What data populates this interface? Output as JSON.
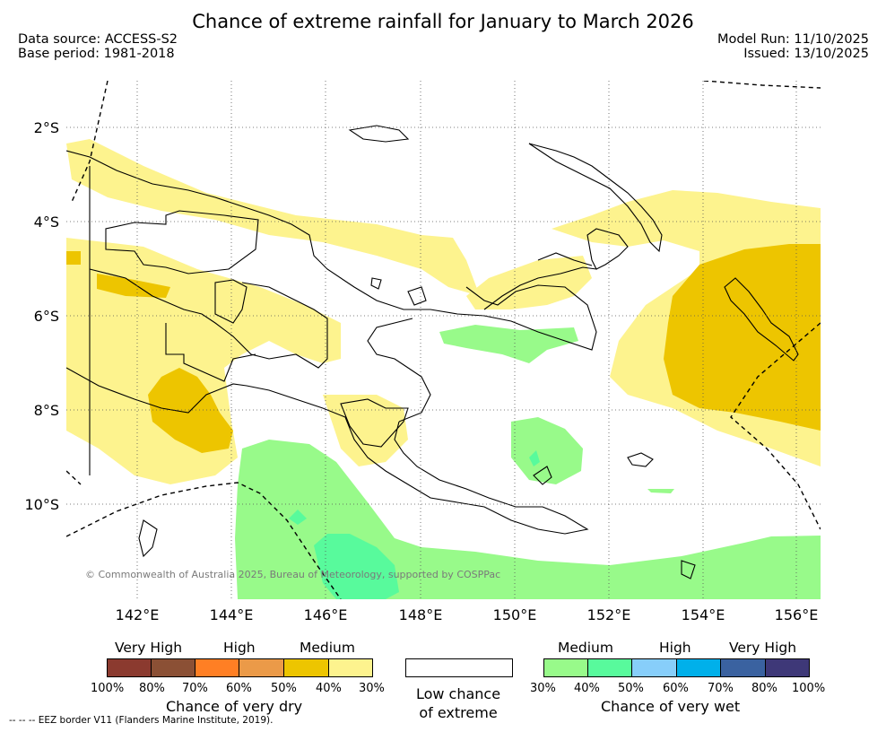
{
  "title": "Chance of extreme rainfall for January to March 2026",
  "header": {
    "data_source": "Data source: ACCESS-S2",
    "base_period": "Base period: 1981-2018",
    "model_run": "Model Run: 11/10/2025",
    "issued": "Issued: 13/10/2025"
  },
  "map": {
    "lat_ticks": [
      "2°S",
      "4°S",
      "6°S",
      "8°S",
      "10°S"
    ],
    "lon_ticks": [
      "142°E",
      "144°E",
      "146°E",
      "148°E",
      "150°E",
      "152°E",
      "154°E",
      "156°E"
    ],
    "copyright": "© Commonwealth of Australia 2025, Bureau of Meteorology, supported by COSPPac",
    "colors": {
      "dry_30": "#fdf38e",
      "dry_40": "#edc500",
      "wet_30": "#98fa8a",
      "wet_40": "#58fa9c"
    }
  },
  "legend": {
    "dry": {
      "headers": [
        "Very High",
        "High",
        "Medium"
      ],
      "colors": [
        "#8b3a2f",
        "#8b5035",
        "#ff7f24",
        "#eb9a48",
        "#edc500",
        "#fdf38e"
      ],
      "ticks": [
        "100%",
        "80%",
        "70%",
        "60%",
        "50%",
        "40%",
        "30%"
      ],
      "label": "Chance of very dry"
    },
    "low": {
      "line1": "Low chance",
      "line2": "of extreme"
    },
    "wet": {
      "headers": [
        "Medium",
        "High",
        "Very High"
      ],
      "colors": [
        "#98fa8a",
        "#58fa9c",
        "#87cefa",
        "#00b0ea",
        "#3a62a0",
        "#3e3878"
      ],
      "ticks": [
        "30%",
        "40%",
        "50%",
        "60%",
        "70%",
        "80%",
        "100%"
      ],
      "label": "Chance of very wet"
    }
  },
  "footnote": "--  --  -- EEZ border V11 (Flanders Marine Institute, 2019)."
}
